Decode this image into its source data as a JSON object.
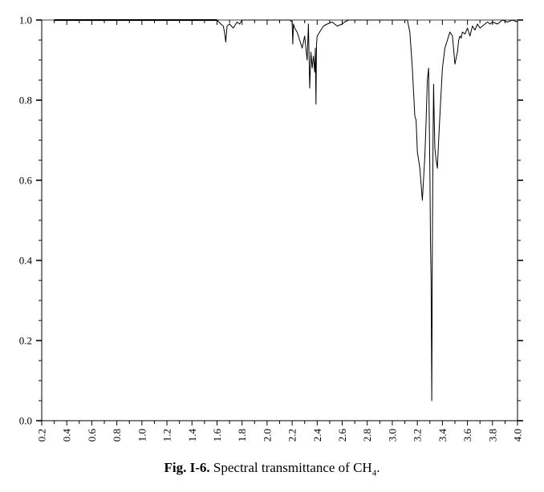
{
  "chart_data": {
    "type": "line",
    "title": "",
    "xlabel": "",
    "ylabel": "",
    "xlim": [
      0.2,
      4.0
    ],
    "ylim": [
      0.0,
      1.0
    ],
    "x_ticks": [
      "0.2",
      "0.4",
      "0.6",
      "0.8",
      "1.0",
      "1.2",
      "1.4",
      "1.6",
      "1.8",
      "2.0",
      "2.2",
      "2.4",
      "2.6",
      "2.8",
      "3.0",
      "3.2",
      "3.4",
      "3.6",
      "3.8",
      "4.0"
    ],
    "y_ticks": [
      "0.0",
      "0.2",
      "0.4",
      "0.6",
      "0.8",
      "1.0"
    ],
    "grid": false,
    "series": [
      {
        "x": [
          0.3,
          1.6,
          1.63,
          1.65,
          1.66,
          1.67,
          1.68,
          1.7,
          1.73,
          1.76,
          1.78,
          1.8,
          1.82,
          2.18,
          2.2,
          2.205,
          2.21,
          2.22,
          2.24,
          2.26,
          2.28,
          2.3,
          2.32,
          2.33,
          2.34,
          2.35,
          2.36,
          2.37,
          2.38,
          2.385,
          2.39,
          2.395,
          2.4,
          2.42,
          2.45,
          2.48,
          2.52,
          2.56,
          2.6,
          2.62,
          2.65,
          2.68,
          3.12,
          3.14,
          3.16,
          3.18,
          3.19,
          3.2,
          3.22,
          3.24,
          3.26,
          3.27,
          3.28,
          3.29,
          3.3,
          3.305,
          3.31,
          3.315,
          3.32,
          3.325,
          3.33,
          3.335,
          3.34,
          3.35,
          3.36,
          3.37,
          3.38,
          3.39,
          3.4,
          3.42,
          3.44,
          3.46,
          3.48,
          3.5,
          3.52,
          3.53,
          3.54,
          3.55,
          3.56,
          3.58,
          3.6,
          3.62,
          3.64,
          3.66,
          3.68,
          3.7,
          3.72,
          3.74,
          3.76,
          3.78,
          3.8,
          3.84,
          3.88,
          3.92,
          3.96,
          4.0
        ],
        "y": [
          1.0,
          1.0,
          0.99,
          0.985,
          0.97,
          0.945,
          0.985,
          0.99,
          0.98,
          0.995,
          0.99,
          1.0,
          1.0,
          1.0,
          0.995,
          0.94,
          0.99,
          0.98,
          0.97,
          0.95,
          0.93,
          0.96,
          0.9,
          0.99,
          0.83,
          0.92,
          0.88,
          0.91,
          0.87,
          0.93,
          0.79,
          0.94,
          0.96,
          0.97,
          0.985,
          0.99,
          0.995,
          0.985,
          0.99,
          0.995,
          1.0,
          1.0,
          1.0,
          0.97,
          0.88,
          0.76,
          0.75,
          0.67,
          0.63,
          0.55,
          0.66,
          0.75,
          0.85,
          0.88,
          0.62,
          0.45,
          0.35,
          0.05,
          0.45,
          0.7,
          0.84,
          0.75,
          0.68,
          0.65,
          0.63,
          0.7,
          0.76,
          0.82,
          0.88,
          0.93,
          0.95,
          0.97,
          0.96,
          0.89,
          0.92,
          0.95,
          0.96,
          0.955,
          0.97,
          0.965,
          0.98,
          0.96,
          0.985,
          0.975,
          0.99,
          0.98,
          0.985,
          0.99,
          0.995,
          0.99,
          0.995,
          0.99,
          1.0,
          0.995,
          1.0,
          0.995
        ]
      }
    ]
  },
  "caption": {
    "label": "Fig. I-6.",
    "text": "Spectral transmittance of CH",
    "subscript": "4",
    "suffix": "."
  }
}
